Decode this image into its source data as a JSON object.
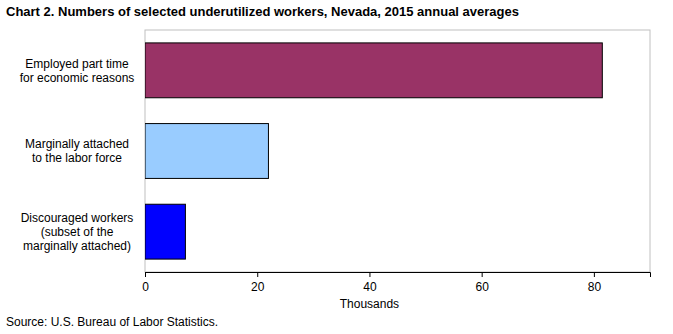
{
  "chart_data": {
    "type": "bar",
    "orientation": "horizontal",
    "title": "Chart 2. Numbers of selected underutilized workers, Nevada, 2015 annual averages",
    "x_label": "Thousands",
    "annotations": [
      "Source: U.S. Bureau of Labor Statistics."
    ],
    "categories": [
      "Employed part time\nfor economic reasons",
      "Marginally attached\nto the labor force",
      "Discouraged workers\n(subset of the\nmarginally attached)"
    ],
    "values": [
      81.5,
      22,
      7.2
    ],
    "colors": [
      "#993366",
      "#99ccff",
      "#0000ff"
    ],
    "xlim": [
      0,
      90
    ],
    "xticks": [
      0,
      20,
      40,
      60,
      80
    ],
    "grid": false
  }
}
